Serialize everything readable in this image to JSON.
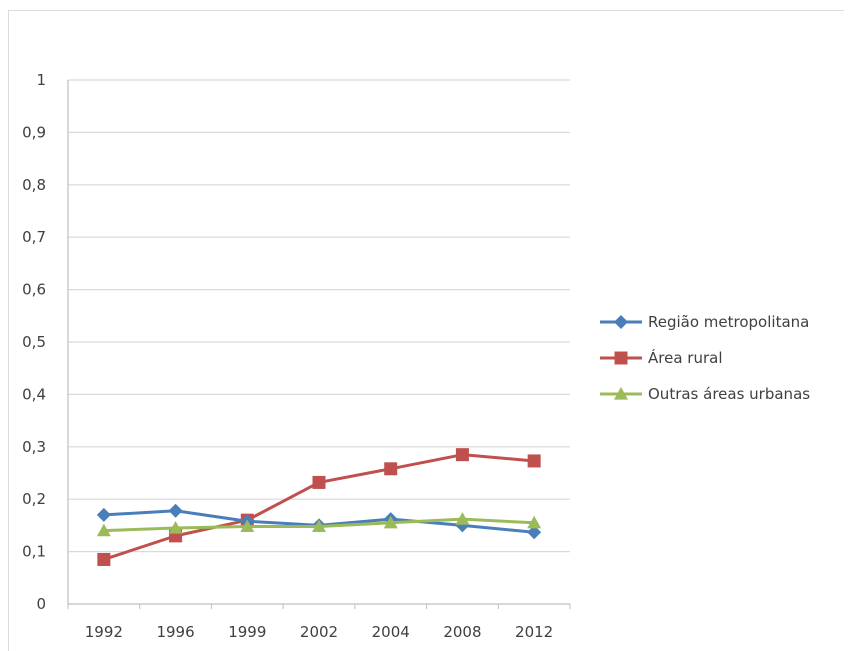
{
  "chart_data": {
    "type": "line",
    "categories": [
      "1992",
      "1996",
      "1999",
      "2002",
      "2004",
      "2008",
      "2012"
    ],
    "series": [
      {
        "name": "Região metropolitana",
        "color": "#4a7ebb",
        "marker": "diamond",
        "values": [
          0.17,
          0.178,
          0.158,
          0.15,
          0.162,
          0.15,
          0.137
        ]
      },
      {
        "name": "Área rural",
        "color": "#c0504d",
        "marker": "square",
        "values": [
          0.085,
          0.13,
          0.16,
          0.232,
          0.258,
          0.285,
          0.273
        ]
      },
      {
        "name": "Outras áreas urbanas",
        "color": "#9bbb59",
        "marker": "triangle",
        "values": [
          0.14,
          0.145,
          0.148,
          0.148,
          0.155,
          0.162,
          0.155
        ]
      }
    ],
    "ylim": [
      0,
      1
    ],
    "y_ticks": [
      "0",
      "0,1",
      "0,2",
      "0,3",
      "0,4",
      "0,5",
      "0,6",
      "0,7",
      "0,8",
      "0,9",
      "1"
    ],
    "grid": true,
    "legend": "right",
    "title": "",
    "xlabel": "",
    "ylabel": ""
  }
}
